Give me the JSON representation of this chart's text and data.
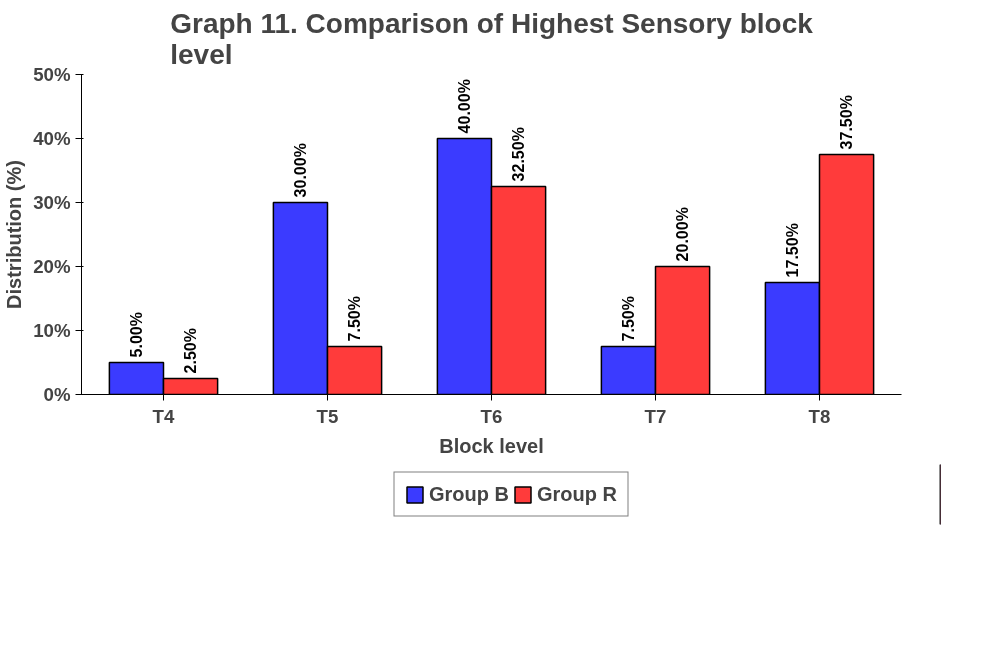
{
  "chart_data": {
    "type": "bar",
    "title": "Graph 11. Comparison of Highest Sensory block level",
    "xlabel": "Block level",
    "ylabel": "Distribution (%)",
    "categories": [
      "T4",
      "T5",
      "T6",
      "T7",
      "T8"
    ],
    "series": [
      {
        "name": "Group B",
        "color": "#3b3bff",
        "values": [
          5,
          30,
          40,
          7.5,
          17.5
        ],
        "value_labels": [
          "5.00%",
          "30.00%",
          "40.00%",
          "7.50%",
          "17.50%"
        ]
      },
      {
        "name": "Group R",
        "color": "#ff3b3b",
        "values": [
          2.5,
          7.5,
          32.5,
          20,
          37.5
        ],
        "value_labels": [
          "2.50%",
          "7.50%",
          "32.50%",
          "20.00%",
          "37.50%"
        ]
      }
    ],
    "ylim": [
      0,
      50
    ],
    "yticks": [
      {
        "value": 0,
        "label": "0%"
      },
      {
        "value": 10,
        "label": "10%"
      },
      {
        "value": 20,
        "label": "20%"
      },
      {
        "value": 30,
        "label": "30%"
      },
      {
        "value": 40,
        "label": "40%"
      },
      {
        "value": 50,
        "label": "50%"
      }
    ],
    "grid": false,
    "legend": "bottom"
  }
}
